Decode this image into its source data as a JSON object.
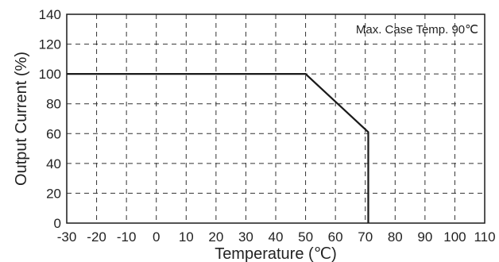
{
  "chart_data": {
    "type": "line",
    "title": "",
    "xlabel": "Temperature (℃)",
    "ylabel": "Output Current (%)",
    "xlim": [
      -30,
      110
    ],
    "ylim": [
      0,
      140
    ],
    "x_ticks": [
      -30,
      -20,
      -10,
      0,
      10,
      20,
      30,
      40,
      50,
      60,
      70,
      80,
      90,
      100,
      110
    ],
    "y_ticks": [
      0,
      20,
      40,
      60,
      80,
      100,
      120,
      140
    ],
    "grid": true,
    "grid_style": "dashed",
    "annotation": "Max. Case Temp. 90℃",
    "annotation_position": "top-right",
    "line_color": "#1a1a1a",
    "series": [
      {
        "x": [
          -30,
          50,
          71,
          71
        ],
        "y": [
          100,
          100,
          61,
          0
        ]
      }
    ]
  }
}
